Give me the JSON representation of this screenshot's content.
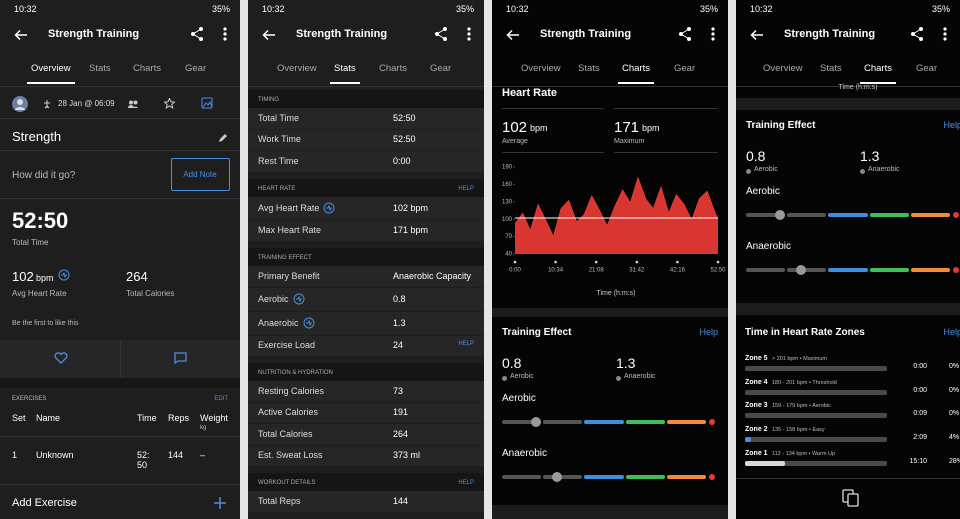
{
  "status_bars": [
    {
      "time": "10:32",
      "battery": "35%"
    },
    {
      "time": "10:32",
      "battery": "35%"
    },
    {
      "time": "10:32",
      "battery": "35%"
    },
    {
      "time": "10:32",
      "battery": "35%"
    }
  ],
  "screens": [
    {
      "title": "Strength Training",
      "tabs": [
        "Overview",
        "Stats",
        "Charts",
        "Gear"
      ],
      "active_tab": 0,
      "date": "28 Jan @ 06:09",
      "activity": "Strength",
      "prompt": "How did it go?",
      "button": "Add Note",
      "total_time": {
        "value": "52:50",
        "label": "Total Time"
      },
      "avg_hr": {
        "value": "102",
        "unit": "bpm",
        "label": "Avg Heart Rate"
      },
      "calories": {
        "value": "264",
        "label": "Total Calories"
      },
      "likes": "Be the first to like this",
      "exercises": {
        "title": "EXERCISES",
        "action": "EDIT",
        "columns": [
          "Set",
          "Name",
          "Time",
          "Reps",
          "Weight"
        ],
        "weight_unit": "kg",
        "rows": [
          [
            "1",
            "Unknown",
            "52:50",
            "144",
            "–"
          ]
        ]
      },
      "add_exercise": "Add Exercise"
    },
    {
      "title": "Strength Training",
      "tabs": [
        "Overview",
        "Stats",
        "Charts",
        "Gear"
      ],
      "active_tab": 1,
      "sections": [
        {
          "title": "TIMING",
          "rows": [
            {
              "label": "Total Time",
              "value": "52:50"
            },
            {
              "label": "Work Time",
              "value": "52:50"
            },
            {
              "label": "Rest Time",
              "value": "0:00"
            }
          ]
        },
        {
          "title": "HEART RATE",
          "help": "HELP",
          "rows": [
            {
              "label": "Avg Heart Rate",
              "value": "102 bpm",
              "info": true
            },
            {
              "label": "Max Heart Rate",
              "value": "171 bpm"
            }
          ]
        },
        {
          "title": "TRAINING EFFECT",
          "rows": [
            {
              "label": "Primary Benefit",
              "value": "Anaerobic Capacity"
            },
            {
              "label": "Aerobic",
              "value": "0.8",
              "info": true
            },
            {
              "label": "Anaerobic",
              "value": "1.3",
              "info": true
            },
            {
              "label": "Exercise Load",
              "value": "24",
              "help": "HELP"
            }
          ]
        },
        {
          "title": "NUTRITION & HYDRATION",
          "rows": [
            {
              "label": "Resting Calories",
              "value": "73"
            },
            {
              "label": "Active Calories",
              "value": "191"
            },
            {
              "label": "Total Calories",
              "value": "264"
            },
            {
              "label": "Est. Sweat Loss",
              "value": "373 ml"
            }
          ]
        },
        {
          "title": "WORKOUT DETAILS",
          "help": "HELP",
          "rows": [
            {
              "label": "Total Reps",
              "value": "144"
            }
          ]
        }
      ]
    },
    {
      "title": "Strength Training",
      "tabs": [
        "Overview",
        "Stats",
        "Charts",
        "Gear"
      ],
      "active_tab": 2,
      "heart_rate": {
        "title": "Heart Rate",
        "average": "102",
        "maximum": "171",
        "unit": "bpm",
        "average_label": "Average",
        "maximum_label": "Maximum"
      },
      "chart": {
        "type": "area",
        "color": "#e53935",
        "x": [
          0,
          120,
          240,
          360,
          480,
          600,
          720,
          840,
          960,
          1080,
          1200,
          1320,
          1440,
          1560,
          1680,
          1800,
          1920,
          2040,
          2160,
          2280,
          2400,
          2520,
          2640,
          2760,
          2880,
          3000,
          3120,
          3170
        ],
        "values": [
          92,
          110,
          80,
          125,
          98,
          70,
          118,
          132,
          95,
          108,
          140,
          115,
          88,
          122,
          150,
          128,
          171,
          135,
          118,
          155,
          110,
          142,
          125,
          98,
          135,
          148,
          112,
          100
        ],
        "average_line": 102,
        "xlim": [
          0,
          3170
        ],
        "xticks": [
          {
            "value": 0,
            "label": "0:00"
          },
          {
            "value": 634,
            "label": "10:34"
          },
          {
            "value": 1268,
            "label": "21:08"
          },
          {
            "value": 1902,
            "label": "31:42"
          },
          {
            "value": 2536,
            "label": "42:16"
          },
          {
            "value": 3170,
            "label": "52:50"
          }
        ],
        "ylim": [
          40,
          190
        ],
        "yticks": [
          40,
          70,
          100,
          130,
          160,
          190
        ],
        "xlabel": "Time (h:m:s)"
      },
      "training_effect": {
        "title": "Training Effect",
        "help": "Help",
        "aerobic": "0.8",
        "anaerobic": "1.3",
        "aerobic_label": "Aerobic",
        "anaerobic_label": "Anaerobic"
      }
    },
    {
      "title": "Strength Training",
      "tabs": [
        "Overview",
        "Stats",
        "Charts",
        "Gear"
      ],
      "active_tab": 2,
      "xlabel": "Time (h:m:s)",
      "training_effect": {
        "title": "Training Effect",
        "help": "Help",
        "aerobic": "0.8",
        "anaerobic": "1.3",
        "aerobic_label": "Aerobic",
        "anaerobic_label": "Anaerobic"
      },
      "zones": {
        "title": "Time in Heart Rate Zones",
        "help": "Help",
        "rows": [
          {
            "name": "Zone 5",
            "detail": "> 201 bpm • Maximum",
            "time": "0:00",
            "percent": "0%"
          },
          {
            "name": "Zone 4",
            "detail": "180 - 201 bpm • Threshold",
            "time": "0:00",
            "percent": "0%"
          },
          {
            "name": "Zone 3",
            "detail": "159 - 179 bpm • Aerobic",
            "time": "0:09",
            "percent": "0%"
          },
          {
            "name": "Zone 2",
            "detail": "135 - 158 bpm • Easy",
            "time": "2:09",
            "percent": "4%"
          },
          {
            "name": "Zone 1",
            "detail": "112 - 134 bpm • Warm Up",
            "time": "15:10",
            "percent": "28%"
          }
        ]
      }
    }
  ]
}
